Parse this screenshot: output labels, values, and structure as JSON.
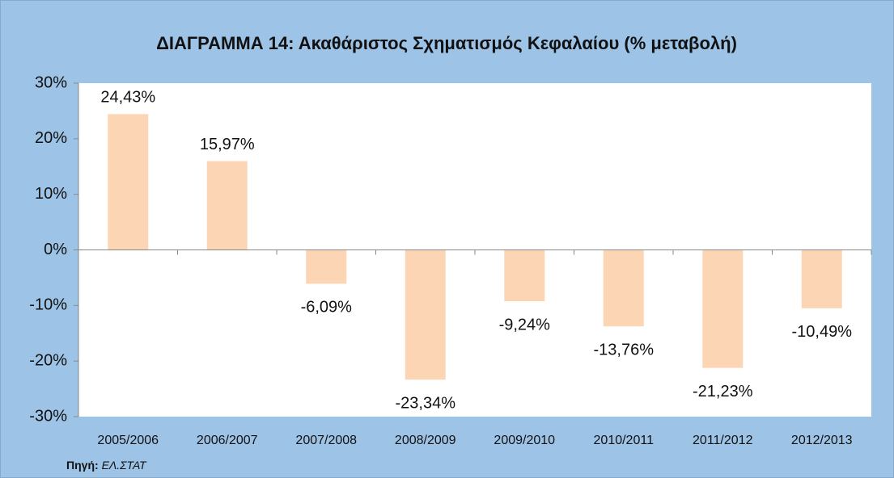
{
  "chart_data": {
    "type": "bar",
    "title": "ΔΙΑΓΡΑΜΜΑ 14: Ακαθάριστος Σχηματισμός Κεφαλαίου (% μεταβολή)",
    "categories": [
      "2005/2006",
      "2006/2007",
      "2007/2008",
      "2008/2009",
      "2009/2010",
      "2010/2011",
      "2011/2012",
      "2012/2013"
    ],
    "values": [
      24.43,
      15.97,
      -6.09,
      -23.34,
      -9.24,
      -13.76,
      -21.23,
      -10.49
    ],
    "value_labels": [
      "24,43%",
      "15,97%",
      "-6,09%",
      "-23,34%",
      "-9,24%",
      "-13,76%",
      "-21,23%",
      "-10,49%"
    ],
    "color": "#fcd5b5",
    "ylim": [
      -30,
      30
    ],
    "yticks": [
      {
        "value": -30,
        "label": "-30%"
      },
      {
        "value": -20,
        "label": "-20%"
      },
      {
        "value": -10,
        "label": "-10%"
      },
      {
        "value": 0,
        "label": "0%"
      },
      {
        "value": 10,
        "label": "10%"
      },
      {
        "value": 20,
        "label": "20%"
      },
      {
        "value": 30,
        "label": "30%"
      }
    ],
    "grid": false,
    "source_label": "Πηγή:",
    "source": "ΕΛ.ΣΤΑΤ"
  }
}
